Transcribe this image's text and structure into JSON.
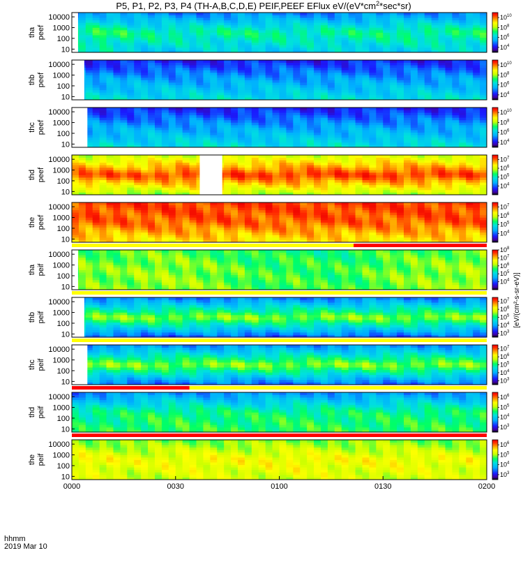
{
  "chart_data": {
    "type": "heatmap",
    "title": "P5, P1, P2, P3, P4 (TH-A,B,C,D,E) PEIF,PEEF EFlux eV/(eV*cm²*sec*sr)",
    "title_parts": {
      "main": "P5, P1, P2, P3, P4 (TH-A,B,C,D,E) PEIF,PEEF EFlux eV/(eV*cm",
      "sup": "2",
      "tail": "*sec*sr)"
    },
    "xaxis": {
      "ticks": [
        "0000",
        "0030",
        "0100",
        "0130",
        "0200"
      ],
      "corner_label": "hhmm",
      "date_label": "2019 Mar 10",
      "range_min": [
        0,
        120
      ]
    },
    "y_ticks": [
      "10000",
      "1000",
      "100",
      "10"
    ],
    "yscale": "log",
    "ylim_eV": [
      5,
      25000
    ],
    "colorbar_label": "[eV/(cm²-s-sr-eV)]",
    "colormap": "rainbow",
    "panels": [
      {
        "probe": "tha",
        "product": "peef",
        "cb_ticks": [
          "10",
          "8",
          "6",
          "4"
        ],
        "cb_log": [
          3,
          11
        ],
        "gap_min": [
          0,
          1.8
        ],
        "level": [
          0.4,
          0.55,
          0.25
        ],
        "base": [
          0.38,
          0.5,
          0.32,
          0.3,
          0.28,
          0.32,
          0.34,
          0.28,
          0.3,
          0.32,
          0.34,
          0.35,
          0.34,
          0.4
        ]
      },
      {
        "probe": "thb",
        "product": "peef",
        "cb_ticks": [
          "10",
          "8",
          "6",
          "4"
        ],
        "cb_log": [
          3,
          11
        ],
        "gap_min": [
          0,
          3.6
        ],
        "level": [
          0.45,
          0.3,
          0.1
        ],
        "base": [
          0.3,
          0.3,
          0.3,
          0.3,
          0.3,
          0.3,
          0.3,
          0.3,
          0.3,
          0.3,
          0.3,
          0.3,
          0.3,
          0.3
        ]
      },
      {
        "probe": "thc",
        "product": "peef",
        "cb_ticks": [
          "10",
          "8",
          "6",
          "4"
        ],
        "cb_log": [
          3,
          11
        ],
        "gap_min": [
          0,
          4.5
        ],
        "level": [
          0.45,
          0.3,
          0.1
        ],
        "base": [
          0.3,
          0.3,
          0.3,
          0.3,
          0.3,
          0.3,
          0.3,
          0.3,
          0.3,
          0.3,
          0.3,
          0.3,
          0.3,
          0.3
        ]
      },
      {
        "probe": "thd",
        "product": "peef",
        "cb_ticks": [
          "7",
          "6",
          "5",
          "4"
        ],
        "cb_log": [
          3,
          7.5
        ],
        "gap_min": [
          37,
          43.5
        ],
        "level": [
          0.55,
          0.95,
          0.6
        ],
        "base": [
          0.82,
          0.8,
          0.78,
          0.85,
          0.9,
          0.88,
          0.86,
          0.9,
          0.88,
          0.86,
          0.9,
          0.88,
          0.86,
          0.84
        ]
      },
      {
        "probe": "the",
        "product": "peef",
        "cb_ticks": [
          "7",
          "6",
          "5",
          "4"
        ],
        "cb_log": [
          3,
          7.5
        ],
        "gap_min": [],
        "level": [
          0.72,
          0.9,
          0.95
        ],
        "base": [
          0.85,
          0.85,
          0.84,
          0.85,
          0.86,
          0.85,
          0.84,
          0.85,
          0.86,
          0.85,
          0.84,
          0.85,
          0.86,
          0.85
        ]
      },
      {
        "probe": "tha",
        "product": "peif",
        "cb_ticks": [
          "8",
          "7",
          "6",
          "5",
          "4"
        ],
        "cb_log": [
          3,
          8
        ],
        "gap_min": [
          0,
          1.8
        ],
        "level": [
          0.6,
          0.6,
          0.55
        ],
        "base": [
          0.6,
          0.55,
          0.62,
          0.65,
          0.58,
          0.5,
          0.4,
          0.45,
          0.38,
          0.42,
          0.55,
          0.6,
          0.62,
          0.7
        ]
      },
      {
        "probe": "thb",
        "product": "peif",
        "cb_ticks": [
          "7",
          "6",
          "5",
          "4",
          "3"
        ],
        "cb_log": [
          2.5,
          7.5
        ],
        "gap_min": [
          0,
          3.6
        ],
        "level": [
          0.2,
          0.72,
          0.25
        ],
        "base": [
          0.3,
          0.3,
          0.3,
          0.3,
          0.3,
          0.3,
          0.3,
          0.3,
          0.3,
          0.3,
          0.3,
          0.3,
          0.3,
          0.3
        ]
      },
      {
        "probe": "thc",
        "product": "peif",
        "cb_ticks": [
          "7",
          "6",
          "5",
          "4",
          "3"
        ],
        "cb_log": [
          2.5,
          7.5
        ],
        "gap_min": [
          0,
          4.5
        ],
        "level": [
          0.22,
          0.72,
          0.28
        ],
        "base": [
          0.3,
          0.3,
          0.3,
          0.3,
          0.3,
          0.3,
          0.3,
          0.3,
          0.3,
          0.3,
          0.3,
          0.3,
          0.3,
          0.3
        ]
      },
      {
        "probe": "thd",
        "product": "peif",
        "cb_ticks": [
          "6",
          "5",
          "4",
          "3"
        ],
        "cb_log": [
          2.5,
          6.5
        ],
        "gap_min": [],
        "level": [
          0.55,
          0.5,
          0.2
        ],
        "base": [
          0.4,
          0.45,
          0.5,
          0.55,
          0.5,
          0.48,
          0.5,
          0.52,
          0.5,
          0.48,
          0.5,
          0.52,
          0.5,
          0.5
        ]
      },
      {
        "probe": "the",
        "product": "peif",
        "cb_ticks": [
          "6",
          "5",
          "4",
          "3"
        ],
        "cb_log": [
          2.5,
          6.5
        ],
        "gap_min": [],
        "level": [
          0.65,
          0.72,
          0.55
        ],
        "base": [
          0.75,
          0.7,
          0.65,
          0.7,
          0.72,
          0.7,
          0.72,
          0.75,
          0.72,
          0.7,
          0.72,
          0.7,
          0.68,
          0.7
        ]
      }
    ],
    "quality_flags": [
      {
        "after_panel": 5,
        "segments": [
          {
            "from_min": 0,
            "to_min": 120,
            "color": "#ffff00"
          },
          {
            "from_min": 81.5,
            "to_min": 120,
            "color": "#ff0000"
          }
        ]
      },
      {
        "after_panel": 6,
        "segments": [
          {
            "from_min": 0,
            "to_min": 120,
            "color": "#ffff00"
          }
        ]
      },
      {
        "after_panel": 7,
        "segments": [
          {
            "from_min": 0,
            "to_min": 120,
            "color": "#ffff00"
          }
        ]
      },
      {
        "after_panel": 8,
        "segments": [
          {
            "from_min": 0,
            "to_min": 120,
            "color": "#ffff00"
          },
          {
            "from_min": 0,
            "to_min": 34,
            "color": "#ff0000"
          }
        ]
      },
      {
        "after_panel": 9,
        "segments": [
          {
            "from_min": 0,
            "to_min": 120,
            "color": "#ff0000"
          }
        ]
      }
    ]
  }
}
